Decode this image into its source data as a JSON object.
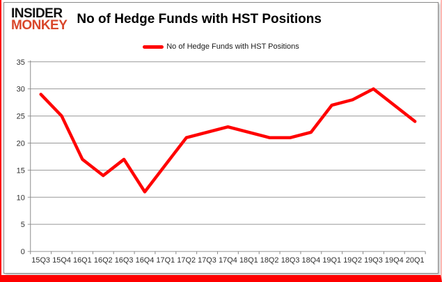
{
  "logo": {
    "line1": "INSIDER",
    "line2": "MONKEY"
  },
  "header": {
    "title": "No of Hedge Funds with HST Positions"
  },
  "legend": {
    "label": "No of Hedge Funds with HST Positions",
    "swatch_color": "#ff0000"
  },
  "colors": {
    "series_red": "#ff0000",
    "logo_red": "#d9472b",
    "frame_red": "#ff0000",
    "grid": "#989898",
    "axis": "#8a8a8a",
    "tick_text": "#2e2e2e"
  },
  "chart_data": {
    "type": "line",
    "title": "No of Hedge Funds with HST Positions",
    "categories": [
      "15Q3",
      "15Q4",
      "16Q1",
      "16Q2",
      "16Q3",
      "16Q4",
      "17Q1",
      "17Q2",
      "17Q3",
      "17Q4",
      "18Q1",
      "18Q2",
      "18Q3",
      "18Q4",
      "19Q1",
      "19Q2",
      "19Q3",
      "19Q4",
      "20Q1"
    ],
    "series": [
      {
        "name": "No of Hedge Funds with HST Positions",
        "color": "#ff0000",
        "values": [
          29,
          25,
          17,
          14,
          17,
          11,
          16,
          21,
          22,
          23,
          22,
          21,
          21,
          22,
          27,
          28,
          30,
          27,
          24
        ]
      }
    ],
    "xlabel": "",
    "ylabel": "",
    "ylim": [
      0,
      35
    ],
    "ytick_interval": 5,
    "grid": true,
    "legend_position": "top"
  }
}
